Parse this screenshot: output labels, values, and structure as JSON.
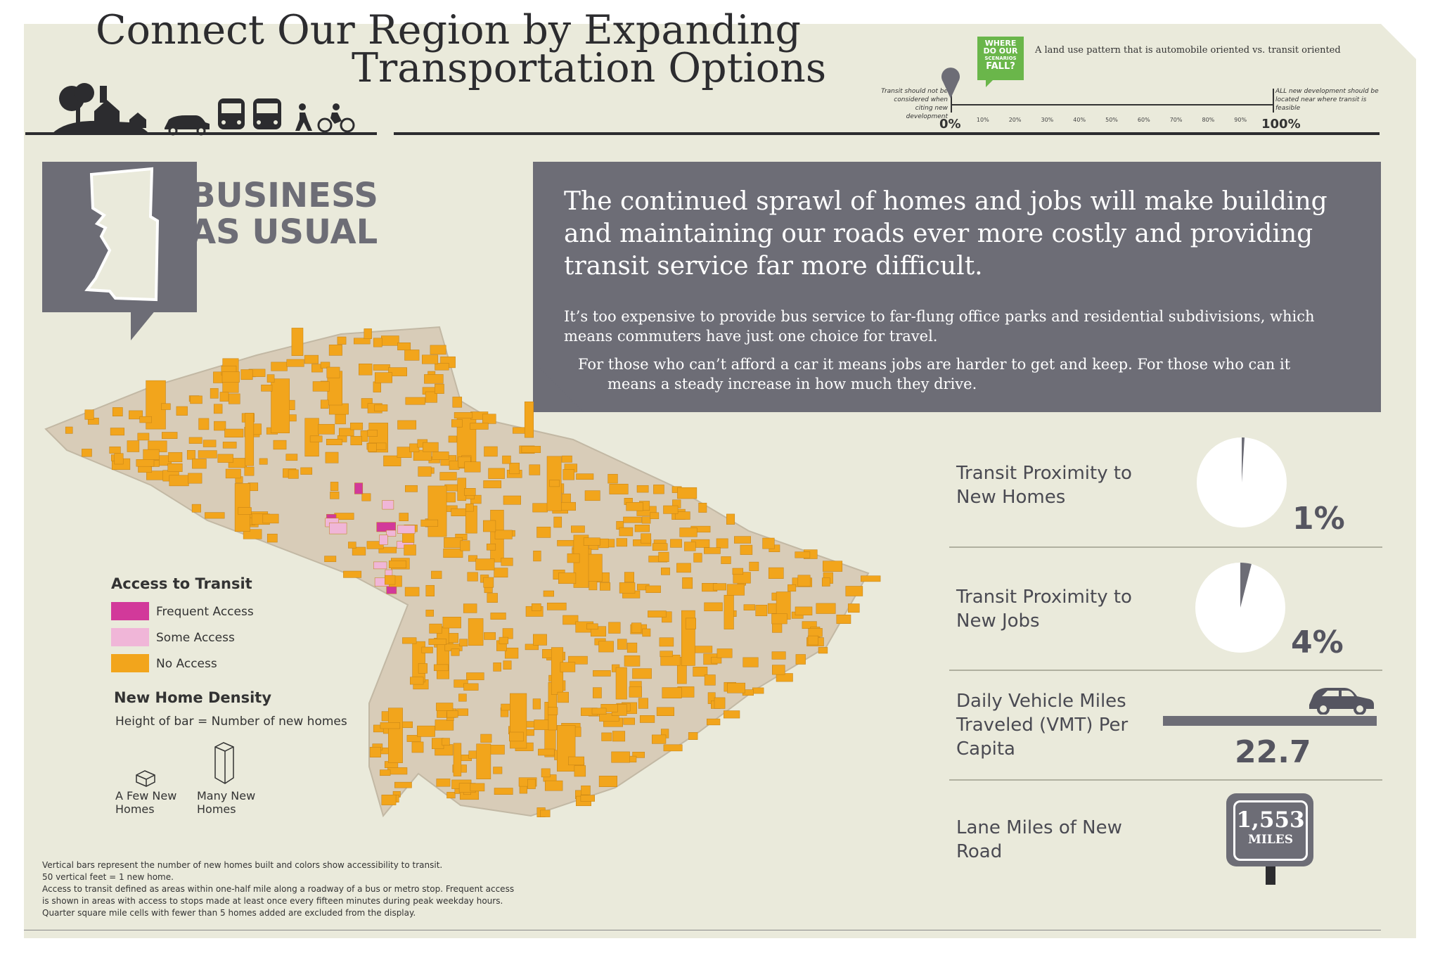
{
  "header": {
    "title_line1": "Connect Our Region by Expanding",
    "title_line2": "Transportation Options",
    "badge": {
      "line1": "WHERE",
      "line2": "DO OUR",
      "line3": "SCENARIOS",
      "line4": "FALL?"
    },
    "scale_caption": "A land use pattern that is automobile oriented vs. transit oriented",
    "scale_left_note": "Transit should not be considered when citing new development",
    "scale_right_note": "ALL new development should be located near where transit is feasible",
    "scale_min": "0%",
    "scale_max": "100%",
    "scale_ticks": [
      "10%",
      "20%",
      "30%",
      "40%",
      "50%",
      "60%",
      "70%",
      "80%",
      "90%"
    ],
    "scenario_marker_value": 0
  },
  "scenario": {
    "title_line1": "BUSINESS",
    "title_line2": "AS USUAL"
  },
  "callout": {
    "headline": "The continued sprawl of homes and jobs will make building and maintaining our roads ever more costly and providing transit service far more difficult.",
    "paragraph1": "It’s too expensive to provide bus service to far-flung office parks and residential subdivisions, which means commuters have just one choice for travel.",
    "paragraph2_line1": "For those who can’t afford a car it means jobs are harder to get and keep. For those who can it",
    "paragraph2_line2": "means a steady increase in how much they drive."
  },
  "metrics": {
    "homes_label_1": "Transit Proximity to",
    "homes_label_2": "New Homes",
    "homes_value": "1%",
    "homes_fraction": 0.01,
    "jobs_label_1": "Transit Proximity to",
    "jobs_label_2": "New Jobs",
    "jobs_value": "4%",
    "jobs_fraction": 0.04,
    "vmt_label_1": "Daily Vehicle Miles",
    "vmt_label_2": "Traveled (VMT) Per",
    "vmt_label_3": "Capita",
    "vmt_value": "22.7",
    "road_label_1": "Lane Miles of New",
    "road_label_2": "Road",
    "road_sign_number": "1,553",
    "road_sign_unit": "MILES"
  },
  "legend": {
    "access_title": "Access to Transit",
    "frequent": "Frequent Access",
    "some": "Some Access",
    "none": "No Access",
    "density_title": "New Home Density",
    "density_sub": "Height of bar = Number of new homes",
    "few_line1": "A Few New",
    "few_line2": "Homes",
    "many_line1": "Many New",
    "many_line2": "Homes"
  },
  "colors": {
    "frequent": "#d2399a",
    "some": "#f0b6d8",
    "none": "#f2a51c",
    "panel": "#6d6d76",
    "background": "#eaeadb",
    "map_base": "#d8ccb8"
  },
  "footnotes": {
    "line1": "Vertical bars represent the number of new homes built and colors show accessibility to transit.",
    "line2": "50 vertical feet = 1 new home.",
    "line3": "Access to transit defined as areas within one-half mile along a roadway of a bus or metro stop. Frequent access",
    "line4": "is shown in areas with access to stops made at least once every fifteen minutes during peak weekday hours.",
    "line5": "Quarter square mile cells with fewer than 5 homes added are excluded from the display."
  }
}
